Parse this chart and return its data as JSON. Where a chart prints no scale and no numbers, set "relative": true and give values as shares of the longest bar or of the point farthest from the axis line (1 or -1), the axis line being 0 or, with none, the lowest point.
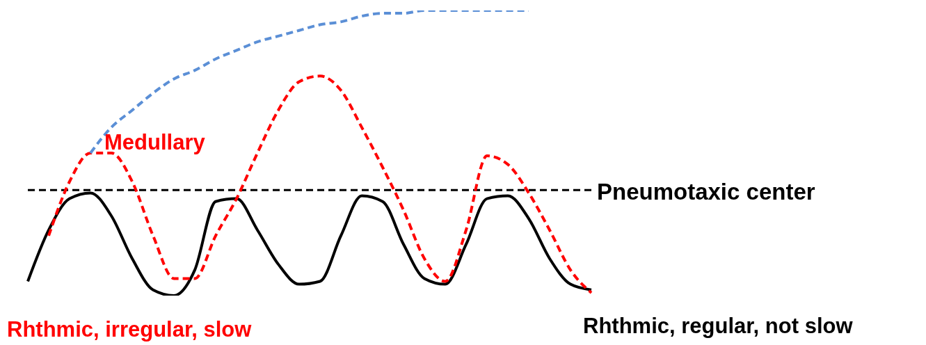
{
  "chart_data": {
    "type": "line",
    "relative": true,
    "grid": false,
    "legend": false,
    "marker": "none",
    "categories": [
      null,
      null,
      null,
      null,
      null,
      null,
      null,
      null,
      null,
      null,
      null,
      null,
      null,
      null,
      null,
      null,
      null,
      null,
      null,
      null,
      null,
      null,
      null,
      null,
      null,
      null,
      null,
      null
    ],
    "series": [
      {
        "color": "#000000",
        "line_style": "solid",
        "values": [
          0.05,
          0.23,
          0.34,
          0.36,
          0.28,
          0.13,
          0.02,
          0,
          0.09,
          0.33,
          0.34,
          0.23,
          0.11,
          0.04,
          0.05,
          0.21,
          0.35,
          0.33,
          0.18,
          0.06,
          0.04,
          0.18,
          0.34,
          0.35,
          0.27,
          0.13,
          0.04,
          0.02
        ]
      },
      {
        "name": "Medullary",
        "color": "#ff0000",
        "line_style": "dashed",
        "values": [
          null,
          0.21,
          0.4,
          0.5,
          0.5,
          0.4,
          0.21,
          0.06,
          0.06,
          0.21,
          0.34,
          0.5,
          0.65,
          0.75,
          0.77,
          0.72,
          0.59,
          0.45,
          0.3,
          0.13,
          0.05,
          0.23,
          0.49,
          0.46,
          0.36,
          0.23,
          0.09,
          0.01
        ]
      },
      {
        "color": "#5b8fd6",
        "line_style": "dashed",
        "values": [
          null,
          null,
          null,
          0.5,
          0.59,
          0.65,
          0.71,
          0.76,
          0.79,
          0.83,
          0.86,
          0.89,
          0.91,
          0.93,
          0.95,
          0.96,
          0.98,
          0.99,
          0.99,
          1,
          1,
          1,
          1,
          1,
          1,
          null,
          null,
          null
        ]
      }
    ],
    "ref_lines": [
      {
        "axis": "y",
        "value": 0.37,
        "label": "Pneumotaxic center",
        "color": "#000000",
        "line_style": "dashed"
      }
    ],
    "annotations": [
      "Rhthmic, irregular, slow",
      "Rhthmic, regular, not slow"
    ]
  }
}
